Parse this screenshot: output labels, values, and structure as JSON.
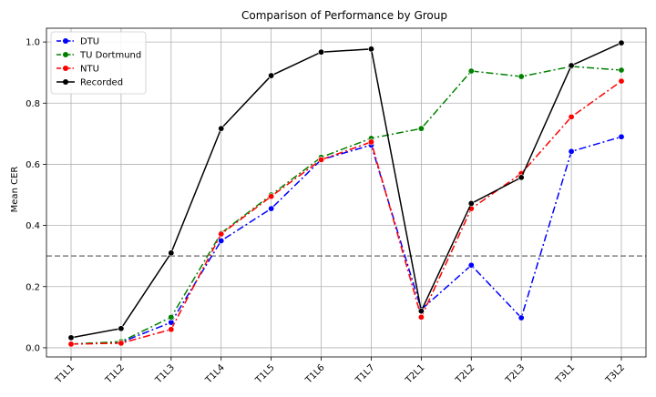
{
  "chart_data": {
    "type": "line",
    "title": "Comparison of Performance by Group",
    "xlabel": "",
    "ylabel": "Mean CER",
    "categories": [
      "T1L1",
      "T1L2",
      "T1L3",
      "T1L4",
      "T1L5",
      "T1L6",
      "T1L7",
      "T2L1",
      "T2L2",
      "T2L3",
      "T3L1",
      "T3L2"
    ],
    "ylim": [
      -0.03,
      1.045
    ],
    "yticks": [
      "0.0",
      "0.2",
      "0.4",
      "0.6",
      "0.8",
      "1.0"
    ],
    "grid": true,
    "legend_position": "top-left",
    "reference_line": {
      "y": 0.3,
      "style": "dashed",
      "color": "#808080"
    },
    "series": [
      {
        "name": "DTU",
        "color": "#0000ff",
        "dash": "dash-dot",
        "values": [
          0.012,
          0.018,
          0.083,
          0.35,
          0.455,
          0.615,
          0.663,
          0.125,
          0.27,
          0.098,
          0.642,
          0.69
        ]
      },
      {
        "name": "TU Dortmund",
        "color": "#008000",
        "dash": "dash-dot",
        "values": [
          0.012,
          0.02,
          0.1,
          0.375,
          0.5,
          0.623,
          0.685,
          0.717,
          0.905,
          0.887,
          0.92,
          0.908
        ]
      },
      {
        "name": "NTU",
        "color": "#ff0000",
        "dash": "dash-dot",
        "values": [
          0.012,
          0.015,
          0.06,
          0.372,
          0.495,
          0.615,
          0.673,
          0.1,
          0.455,
          0.57,
          0.755,
          0.872
        ]
      },
      {
        "name": "Recorded",
        "color": "#000000",
        "dash": "solid",
        "values": [
          0.033,
          0.063,
          0.31,
          0.717,
          0.89,
          0.967,
          0.977,
          0.12,
          0.472,
          0.557,
          0.923,
          0.997
        ]
      }
    ]
  }
}
